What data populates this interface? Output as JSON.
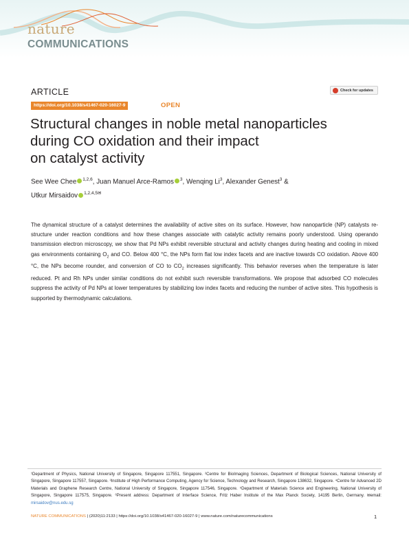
{
  "journal": {
    "logo_top": "nature",
    "logo_bottom": "COMMUNICATIONS"
  },
  "article_type": "ARTICLE",
  "check_updates_label": "Check for updates",
  "doi_link": "https://doi.org/10.1038/s41467-020-16027-9",
  "open_label": "OPEN",
  "title_lines": [
    "Structural changes in noble metal nanoparticles",
    "during CO oxidation and their impact",
    "on catalyst activity"
  ],
  "authors": [
    {
      "name": "See Wee Chee",
      "sup": "1,2,6",
      "orcid": true,
      "sep": ", "
    },
    {
      "name": "Juan Manuel Arce-Ramos",
      "sup": "3",
      "orcid": true,
      "sep": ", "
    },
    {
      "name": "Wenqing Li",
      "sup": "3",
      "orcid": false,
      "sep": ", "
    },
    {
      "name": "Alexander Genest",
      "sup": "3",
      "orcid": false,
      "sep": " & "
    },
    {
      "name": "Utkur Mirsaidov",
      "sup": "1,2,4,5",
      "orcid": true,
      "sep": "",
      "mail": "✉"
    }
  ],
  "abstract": {
    "p1": "The dynamical structure of a catalyst determines the availability of active sites on its surface. However, how nanoparticle (NP) catalysts re-structure under reaction conditions and how these changes associate with catalytic activity remains poorly understood. Using operando transmission electron microscopy, we show that Pd NPs exhibit reversible structural and activity changes during heating and cooling in mixed gas environments containing O",
    "o2_sub": "2",
    "p2": " and CO. Below 400 °C, the NPs form flat low index facets and are inactive towards CO oxidation. Above 400 °C, the NPs become rounder, and conversion of CO to CO",
    "co2_sub": "2",
    "p3": " increases significantly. This behavior reverses when the temperature is later reduced. Pt and Rh NPs under similar conditions do not exhibit such reversible transformations. We propose that adsorbed CO molecules suppress the activity of Pd NPs at lower temperatures by stabilizing low index facets and reducing the number of active sites. This hypothesis is supported by thermodynamic calculations."
  },
  "affiliations": {
    "text": "¹Department of Physics, National University of Singapore, Singapore 117551, Singapore. ²Centre for BioImaging Sciences, Department of Biological Sciences, National University of Singapore, Singapore 117557, Singapore. ³Institute of High Performance Computing, Agency for Science, Technology and Research, Singapore 138632, Singapore. ⁴Centre for Advanced 2D Materials and Graphene Research Centre, National University of Singapore, Singapore 117546, Singapore. ⁵Department of Materials Science and Engineering, National University of Singapore, Singapore 117575, Singapore. ⁶Present address: Department of Interface Science, Fritz Haber Institute of the Max Planck Society, 14195 Berlin, Germany. ✉email: ",
    "email": "mirsaidov@nus.edu.sg"
  },
  "footer": {
    "journal": "NATURE COMMUNICATIONS",
    "citation": " | (2020)11:2133 | https://doi.org/10.1038/s41467-020-16027-9 | www.nature.com/naturecommunications",
    "page": "1"
  },
  "colors": {
    "accent_orange": "#e9862b",
    "logo_gold": "#c8a876",
    "logo_grey": "#7a8d8f",
    "orcid_green": "#a6ce39"
  }
}
